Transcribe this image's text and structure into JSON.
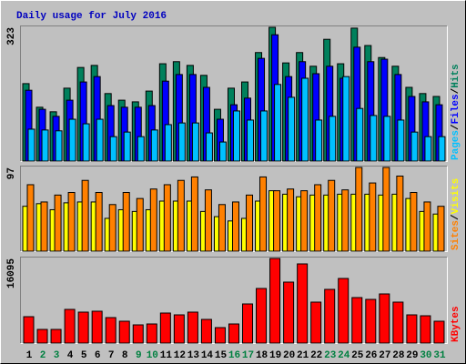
{
  "title": "Daily usage for July 2016",
  "chart_data": [
    {
      "type": "bar",
      "ylim": [
        0,
        323
      ],
      "yticks": [
        323
      ],
      "legend_separator": "/",
      "categories": [
        "1",
        "2",
        "3",
        "4",
        "5",
        "6",
        "7",
        "8",
        "9",
        "10",
        "11",
        "12",
        "13",
        "14",
        "15",
        "16",
        "17",
        "18",
        "19",
        "20",
        "21",
        "22",
        "23",
        "24",
        "25",
        "26",
        "27",
        "28",
        "29",
        "30",
        "31"
      ],
      "category_colors": [
        "#000000",
        "#008040",
        "#008040",
        "#000000",
        "#000000",
        "#000000",
        "#000000",
        "#000000",
        "#008040",
        "#008040",
        "#000000",
        "#000000",
        "#000000",
        "#000000",
        "#000000",
        "#008040",
        "#008040",
        "#000000",
        "#000000",
        "#000000",
        "#000000",
        "#000000",
        "#008040",
        "#008040",
        "#000000",
        "#000000",
        "#000000",
        "#000000",
        "#000000",
        "#008040",
        "#008040"
      ],
      "series": [
        {
          "name": "Hits",
          "color": "#00805c",
          "values": [
            187,
            130,
            119,
            176,
            226,
            231,
            163,
            147,
            143,
            169,
            235,
            240,
            231,
            207,
            125,
            176,
            191,
            262,
            323,
            237,
            262,
            229,
            294,
            235,
            321,
            279,
            250,
            229,
            178,
            163,
            156
          ]
        },
        {
          "name": "Files",
          "color": "#0000ff",
          "values": [
            171,
            125,
            108,
            147,
            191,
            204,
            134,
            130,
            130,
            134,
            193,
            209,
            209,
            178,
            101,
            136,
            152,
            248,
            305,
            204,
            240,
            211,
            229,
            200,
            275,
            240,
            246,
            209,
            156,
            143,
            136
          ]
        },
        {
          "name": "Pages",
          "color": "#00c0ff",
          "values": [
            77,
            75,
            73,
            101,
            90,
            101,
            59,
            70,
            59,
            75,
            88,
            92,
            92,
            68,
            46,
            121,
            99,
            121,
            185,
            154,
            200,
            99,
            108,
            204,
            127,
            110,
            108,
            99,
            70,
            59,
            59
          ]
        }
      ]
    },
    {
      "type": "bar",
      "ylim": [
        0,
        97
      ],
      "yticks": [
        97
      ],
      "legend_separator": "/",
      "series": [
        {
          "name": "Visits",
          "color": "#ffff00",
          "values": [
            52,
            55,
            48,
            56,
            57,
            57,
            38,
            48,
            46,
            48,
            58,
            58,
            58,
            46,
            40,
            35,
            38,
            58,
            70,
            66,
            63,
            65,
            65,
            66,
            66,
            66,
            65,
            66,
            61,
            46,
            43
          ]
        },
        {
          "name": "Sites",
          "color": "#ff8000",
          "values": [
            77,
            57,
            65,
            68,
            82,
            68,
            54,
            68,
            61,
            72,
            77,
            82,
            86,
            71,
            54,
            57,
            65,
            86,
            70,
            72,
            70,
            77,
            82,
            71,
            97,
            79,
            97,
            87,
            68,
            57,
            52
          ]
        }
      ]
    },
    {
      "type": "bar",
      "ylim": [
        0,
        16095
      ],
      "yticks": [
        16095
      ],
      "series": [
        {
          "name": "KBytes",
          "color": "#ff0000",
          "values": [
            5019,
            2596,
            2596,
            6403,
            5884,
            6057,
            4846,
            4154,
            3461,
            3634,
            5711,
            5365,
            5884,
            4500,
            2942,
            3634,
            7442,
            10384,
            16095,
            11595,
            15057,
            7788,
            10211,
            12288,
            8653,
            8307,
            9346,
            7788,
            5365,
            5192,
            4154
          ]
        }
      ]
    }
  ]
}
